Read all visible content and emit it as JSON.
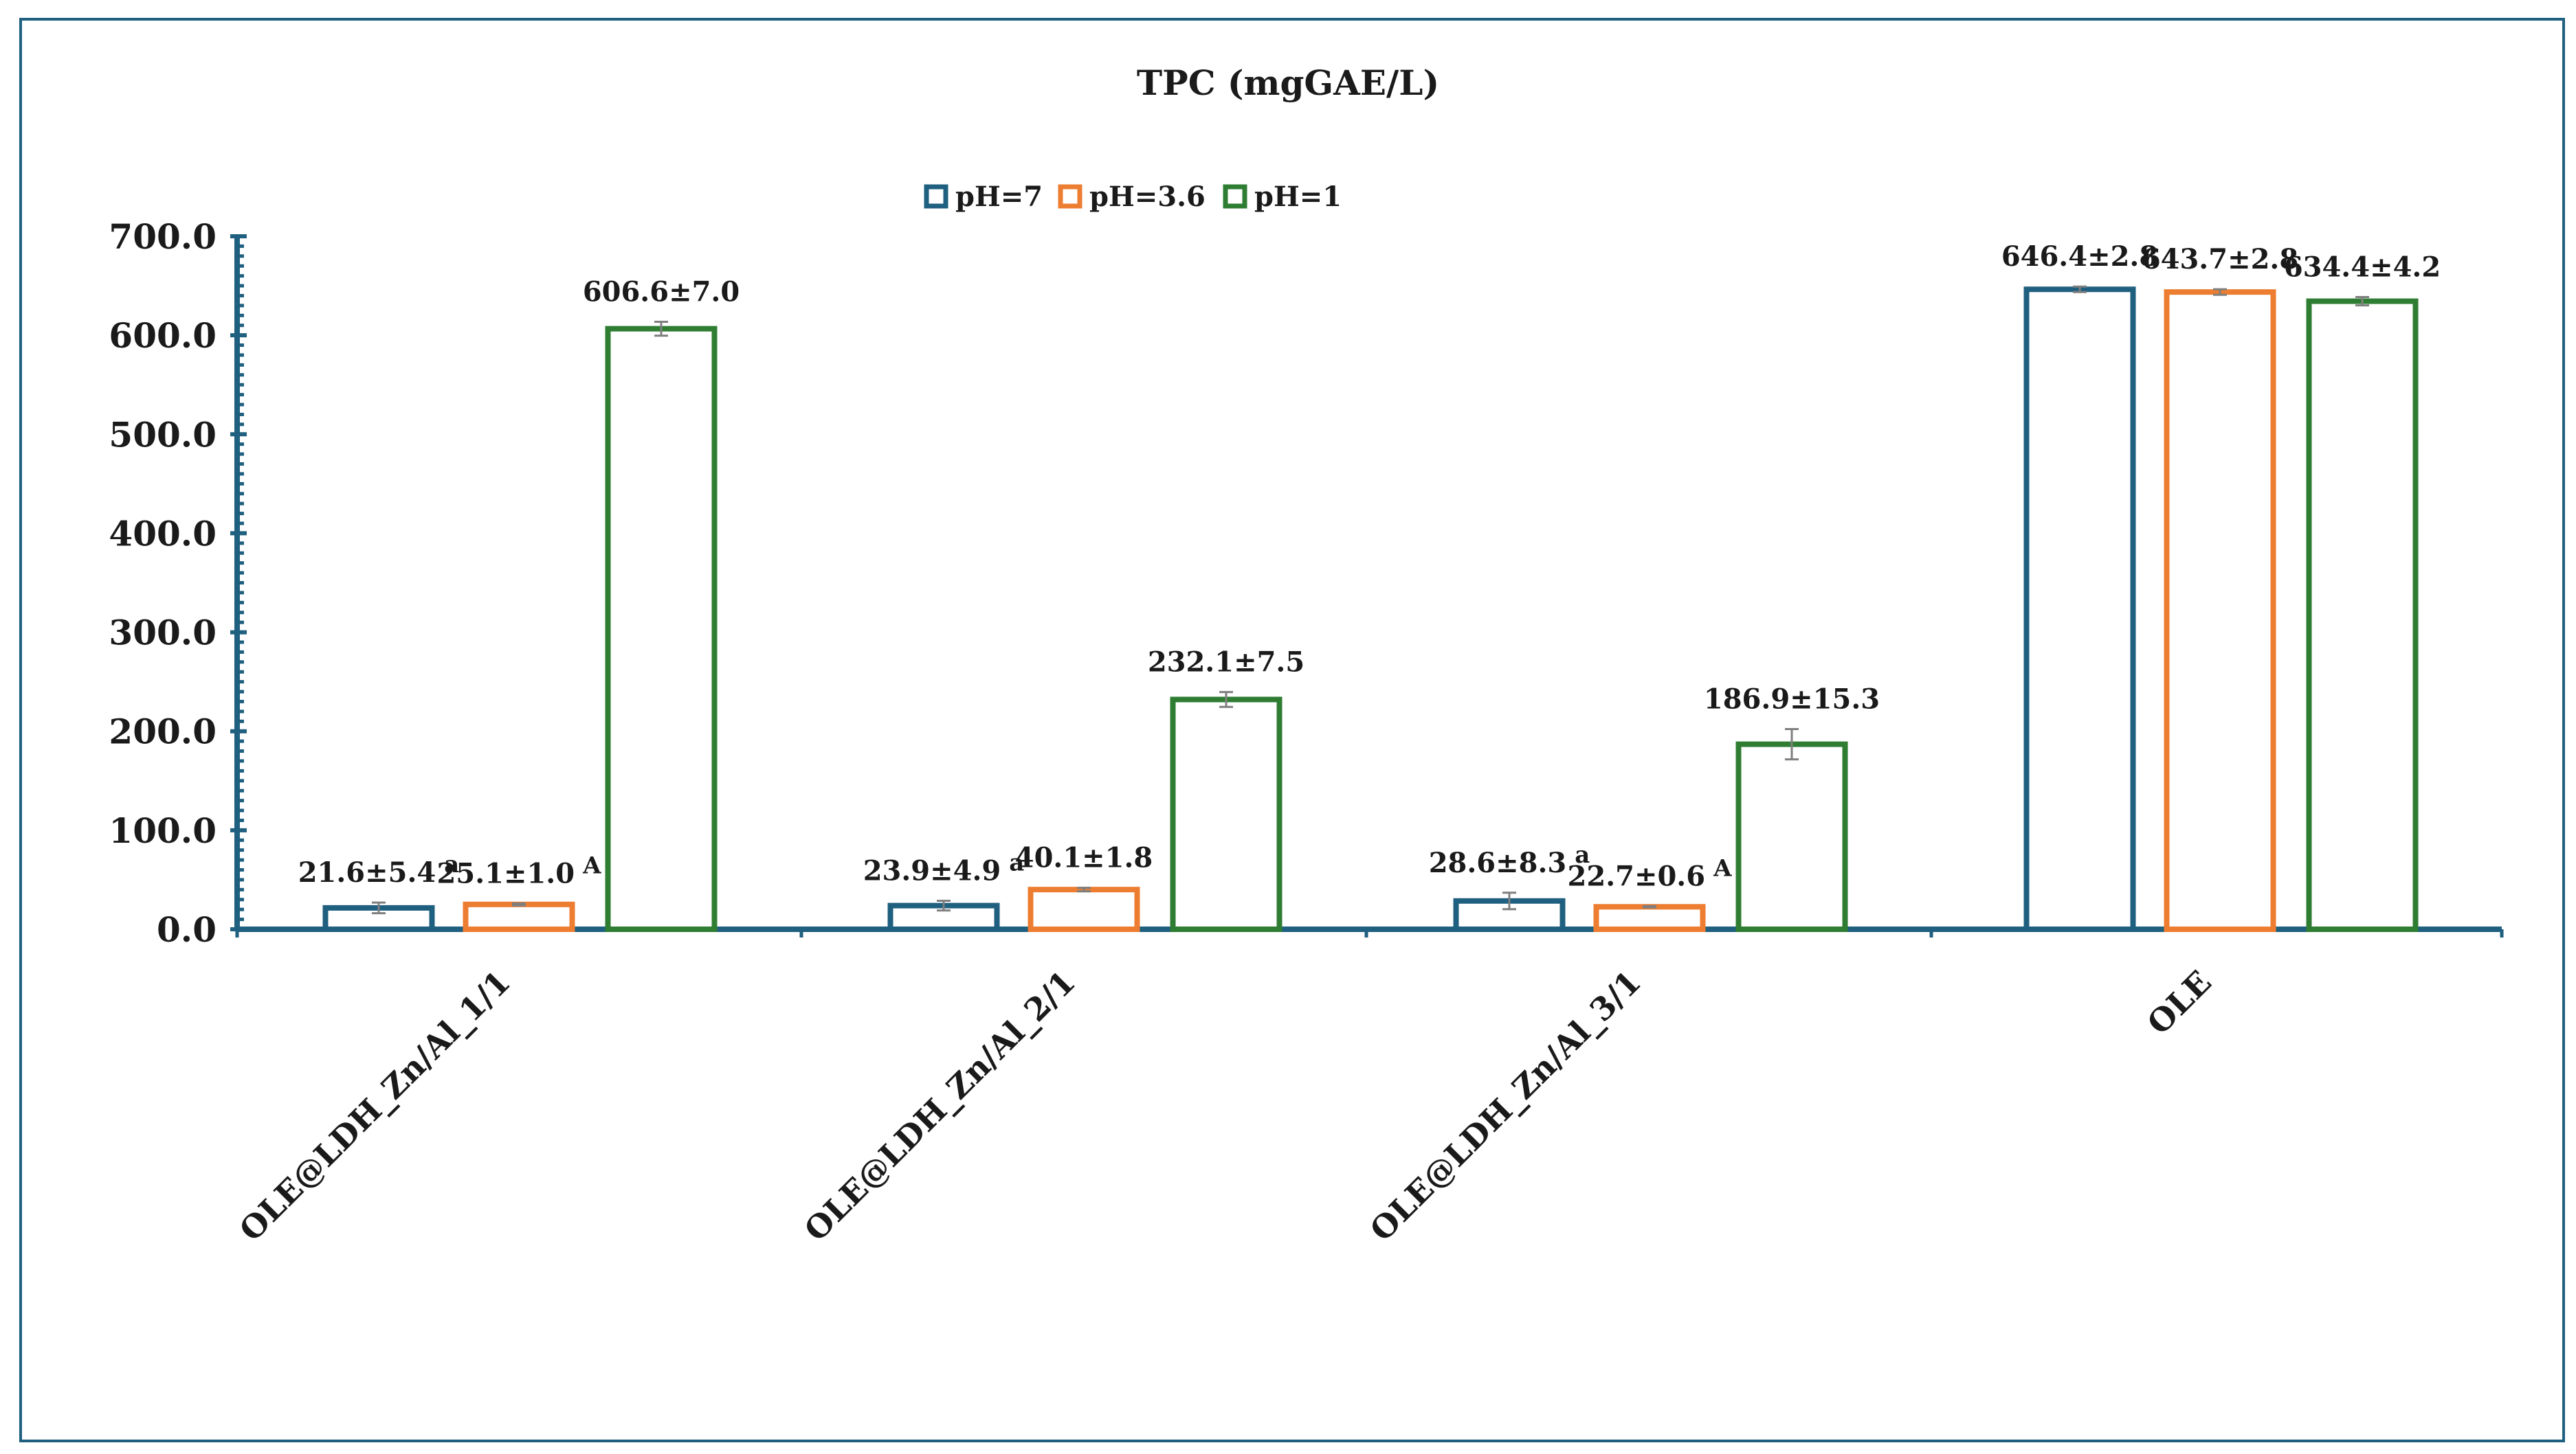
{
  "chart_data": {
    "type": "bar",
    "title": "TPC (mgGAE/L)",
    "xlabel": "",
    "ylabel": "",
    "ylim": [
      0,
      700
    ],
    "yticks": [
      0,
      100,
      200,
      300,
      400,
      500,
      600,
      700
    ],
    "ytick_labels": [
      "0.0",
      "100.0",
      "200.0",
      "300.0",
      "400.0",
      "500.0",
      "600.0",
      "700.0"
    ],
    "legend_position": "top-center",
    "categories": [
      "OLE@LDH_Zn/Al_1/1",
      "OLE@LDH_Zn/Al_2/1",
      "OLE@LDH_Zn/Al_3/1",
      "OLE"
    ],
    "series": [
      {
        "name": "pH=7",
        "color": "#1f5f7f",
        "values": [
          21.6,
          23.9,
          28.6,
          646.4
        ],
        "errors": [
          5.4,
          4.9,
          8.3,
          2.8
        ],
        "labels": [
          "21.6±5.4",
          "23.9±4.9",
          "28.6±8.3",
          "646.4±2.8"
        ],
        "superscripts": [
          "a",
          "a",
          "a",
          ""
        ]
      },
      {
        "name": "pH=3.6",
        "color": "#ed7d31",
        "values": [
          25.1,
          40.1,
          22.7,
          643.7
        ],
        "errors": [
          1.0,
          1.8,
          0.6,
          2.8
        ],
        "labels": [
          "25.1±1.0",
          "40.1±1.8",
          "22.7±0.6",
          "643.7±2.8"
        ],
        "superscripts": [
          "A",
          "",
          "A",
          ""
        ]
      },
      {
        "name": "pH=1",
        "color": "#2e7d32",
        "values": [
          606.6,
          232.1,
          186.9,
          634.4
        ],
        "errors": [
          7.0,
          7.5,
          15.3,
          4.2
        ],
        "labels": [
          "606.6±7.0",
          "232.1±7.5",
          "186.9±15.3",
          "634.4±4.2"
        ],
        "superscripts": [
          "",
          "",
          "",
          ""
        ]
      }
    ],
    "axis_color": "#1f5f7f",
    "frame_color": "#1f5f7f",
    "text_color": "#1a1a1a",
    "error_bar_color": "#7f7f7f"
  }
}
